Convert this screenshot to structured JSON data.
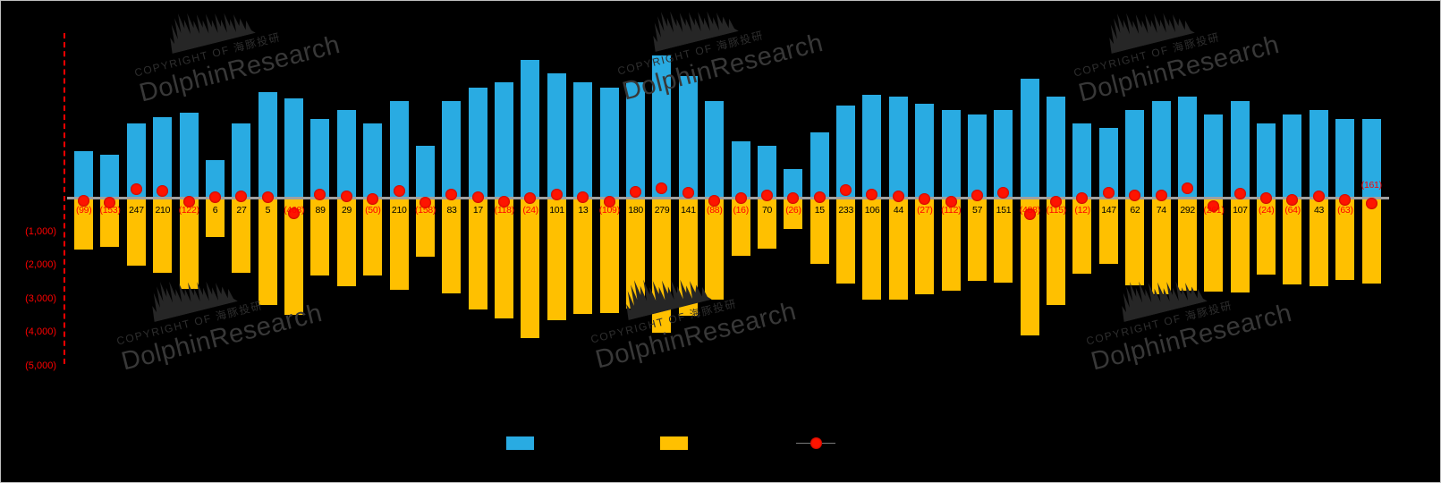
{
  "page": {
    "background": "#000000"
  },
  "watermark": {
    "small_text": "COPYRIGHT OF 海豚投研",
    "brand": "DolphinResearch"
  },
  "legend": {
    "labels_visible": false,
    "items": [
      {
        "name": "blue-series",
        "color": "#29ABE2"
      },
      {
        "name": "gold-series",
        "color": "#FFC000"
      },
      {
        "name": "net-marker-series",
        "color": "#FE1400"
      }
    ]
  },
  "chart_data": {
    "type": "bar",
    "title": "",
    "xlabel": "",
    "ylabel": "",
    "categories_visible": false,
    "ylim": [
      -5000,
      4800
    ],
    "zero_line_color": "#A0A0A0",
    "negative_label_color": "#FF0000",
    "positive_label_color": "#000000",
    "labels_above_indices": [
      49
    ],
    "y_axis": {
      "color": "#FF0000",
      "ticks": [
        "(1,000)",
        "(2,000)",
        "(3,000)",
        "(4,000)",
        "(5,000)"
      ],
      "tick_values": [
        -1000,
        -2000,
        -3000,
        -4000,
        -5000
      ]
    },
    "series": [
      {
        "name": "upward-blue-bars",
        "color": "#29ABE2",
        "values": [
          1400,
          1270,
          2210,
          2400,
          2540,
          1130,
          2210,
          3160,
          2970,
          2350,
          2620,
          2210,
          2890,
          1540,
          2890,
          3290,
          3430,
          4100,
          3700,
          3430,
          3290,
          3430,
          4240,
          3620,
          2890,
          1670,
          1540,
          860,
          1940,
          2750,
          3080,
          3020,
          2810,
          2620,
          2480,
          2620,
          3560,
          3020,
          2210,
          2080,
          2620,
          2890,
          3020,
          2480,
          2890,
          2210,
          2480,
          2620,
          2350,
          2350
        ]
      },
      {
        "name": "downward-gold-bars",
        "color": "#FFC000",
        "values": [
          -1499,
          -1423,
          -1963,
          -2190,
          -2662,
          -1124,
          -2183,
          -3155,
          -3438,
          -2261,
          -2591,
          -2260,
          -2680,
          -1698,
          -2807,
          -3273,
          -3548,
          -4124,
          -3599,
          -3417,
          -3399,
          -3250,
          -3961,
          -3479,
          -2978,
          -1686,
          -1470,
          -886,
          -1925,
          -2517,
          -2974,
          -2976,
          -2837,
          -2732,
          -2423,
          -2469,
          -4048,
          -3135,
          -2222,
          -1933,
          -2558,
          -2816,
          -2728,
          -2741,
          -2783,
          -2234,
          -2544,
          -2577,
          -2413,
          -2511
        ]
      },
      {
        "name": "net-red-markers",
        "type": "scatter",
        "color": "#FE1400",
        "values": [
          -99,
          -153,
          247,
          210,
          -122,
          6,
          27,
          5,
          -468,
          89,
          29,
          -50,
          210,
          -158,
          83,
          17,
          -118,
          -24,
          101,
          13,
          -109,
          180,
          279,
          141,
          -88,
          -16,
          70,
          -26,
          15,
          233,
          106,
          44,
          -27,
          -112,
          57,
          151,
          -488,
          -115,
          -12,
          147,
          62,
          74,
          292,
          -261,
          107,
          -24,
          -64,
          43,
          -63,
          -161
        ]
      }
    ],
    "net_labels": [
      "(99)",
      "(153)",
      "247",
      "210",
      "(122)",
      "6",
      "27",
      "5",
      "(468)",
      "89",
      "29",
      "(50)",
      "210",
      "(158)",
      "83",
      "17",
      "(118)",
      "(24)",
      "101",
      "13",
      "(109)",
      "180",
      "279",
      "141",
      "(88)",
      "(16)",
      "70",
      "(26)",
      "15",
      "233",
      "106",
      "44",
      "(27)",
      "(112)",
      "57",
      "151",
      "(488)",
      "(115)",
      "(12)",
      "147",
      "62",
      "74",
      "292",
      "(261)",
      "107",
      "(24)",
      "(64)",
      "43",
      "(63)",
      "(161)"
    ]
  }
}
